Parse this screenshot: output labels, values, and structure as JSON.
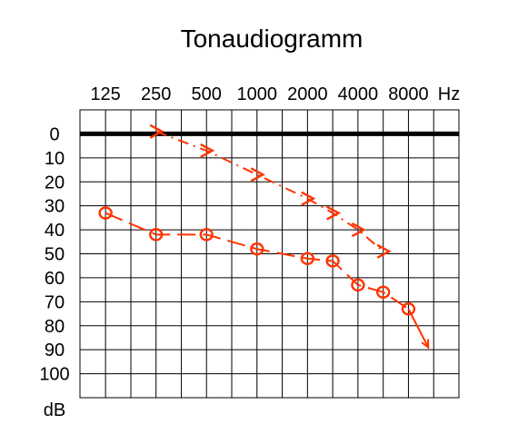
{
  "chart_data": {
    "type": "line",
    "title": "Tonaudiogramm",
    "x_unit": "Hz",
    "y_unit": "dB",
    "x_tick_labels": [
      "125",
      "250",
      "500",
      "1000",
      "2000",
      "4000",
      "8000"
    ],
    "x_grid_hz": [
      125,
      177,
      250,
      354,
      500,
      707,
      1000,
      1414,
      2000,
      2828,
      4000,
      5657,
      8000,
      11314,
      16000
    ],
    "xlim_hz": [
      88,
      16000
    ],
    "y_tick_labels": [
      "0",
      "10",
      "20",
      "30",
      "40",
      "50",
      "60",
      "70",
      "80",
      "90",
      "100"
    ],
    "y_ticks_db": [
      0,
      10,
      20,
      30,
      40,
      50,
      60,
      70,
      80,
      90,
      100
    ],
    "ylim_db": [
      -10,
      110
    ],
    "y_inverted": true,
    "grid": true,
    "reference_line_db": 0,
    "legend": "none",
    "series": [
      {
        "marker": "chevron",
        "line_style": "dash-dot",
        "color": "#ff3300",
        "points": [
          {
            "x": 250,
            "y": -1
          },
          {
            "x": 500,
            "y": 7
          },
          {
            "x": 1000,
            "y": 17
          },
          {
            "x": 2000,
            "y": 27
          },
          {
            "x": 2828,
            "y": 33
          },
          {
            "x": 4000,
            "y": 40
          },
          {
            "x": 5657,
            "y": 49
          }
        ]
      },
      {
        "marker": "circle",
        "line_style": "long-dash",
        "color": "#ff3300",
        "points": [
          {
            "x": 125,
            "y": 33
          },
          {
            "x": 250,
            "y": 42
          },
          {
            "x": 500,
            "y": 42
          },
          {
            "x": 1000,
            "y": 48
          },
          {
            "x": 2000,
            "y": 52
          },
          {
            "x": 2828,
            "y": 53
          },
          {
            "x": 4000,
            "y": 63
          },
          {
            "x": 5657,
            "y": 66
          },
          {
            "x": 8000,
            "y": 73
          }
        ],
        "trend_arrow_to": {
          "x": 10500,
          "y": 89
        }
      }
    ]
  }
}
